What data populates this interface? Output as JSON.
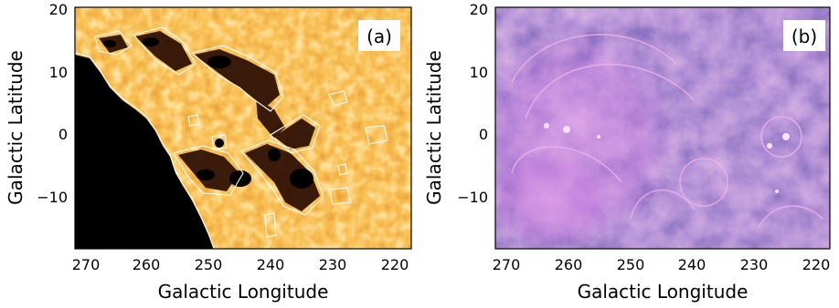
{
  "figure": {
    "panels": [
      {
        "label": "(a)",
        "xlabel": "Galactic Longitude",
        "ylabel": "Galactic Latitude",
        "x_ticks": [
          "270",
          "260",
          "250",
          "240",
          "230",
          "220"
        ],
        "y_ticks": [
          "20",
          "10",
          "0",
          "−10"
        ],
        "colormap": "orange-hot",
        "colors": {
          "low": "#1a0a00",
          "mid": "#e8681a",
          "high": "#fff3d6",
          "contour": "#ffffff",
          "mask": "#000000"
        }
      },
      {
        "label": "(b)",
        "xlabel": "Galactic Longitude",
        "ylabel": "Galactic Latitude",
        "x_ticks": [
          "270",
          "260",
          "250",
          "240",
          "230",
          "220"
        ],
        "y_ticks": [
          "20",
          "10",
          "0",
          "−10"
        ],
        "colormap": "purple-pink",
        "colors": {
          "low": "#2b2a7a",
          "mid": "#9a5fd0",
          "high": "#f4b8f0"
        }
      }
    ]
  },
  "chart_data": [
    {
      "type": "heatmap",
      "label": "(a)",
      "xlabel": "Galactic Longitude",
      "ylabel": "Galactic Latitude",
      "xlim": [
        272,
        218
      ],
      "ylim": [
        -18,
        20
      ],
      "x_ticks": [
        270,
        260,
        250,
        240,
        230,
        220
      ],
      "y_ticks": [
        20,
        10,
        0,
        -10
      ]
    },
    {
      "type": "heatmap",
      "label": "(b)",
      "xlabel": "Galactic Longitude",
      "ylabel": "Galactic Latitude",
      "xlim": [
        272,
        218
      ],
      "ylim": [
        -18,
        20
      ],
      "x_ticks": [
        270,
        260,
        250,
        240,
        230,
        220
      ],
      "y_ticks": [
        20,
        10,
        0,
        -10
      ]
    }
  ]
}
